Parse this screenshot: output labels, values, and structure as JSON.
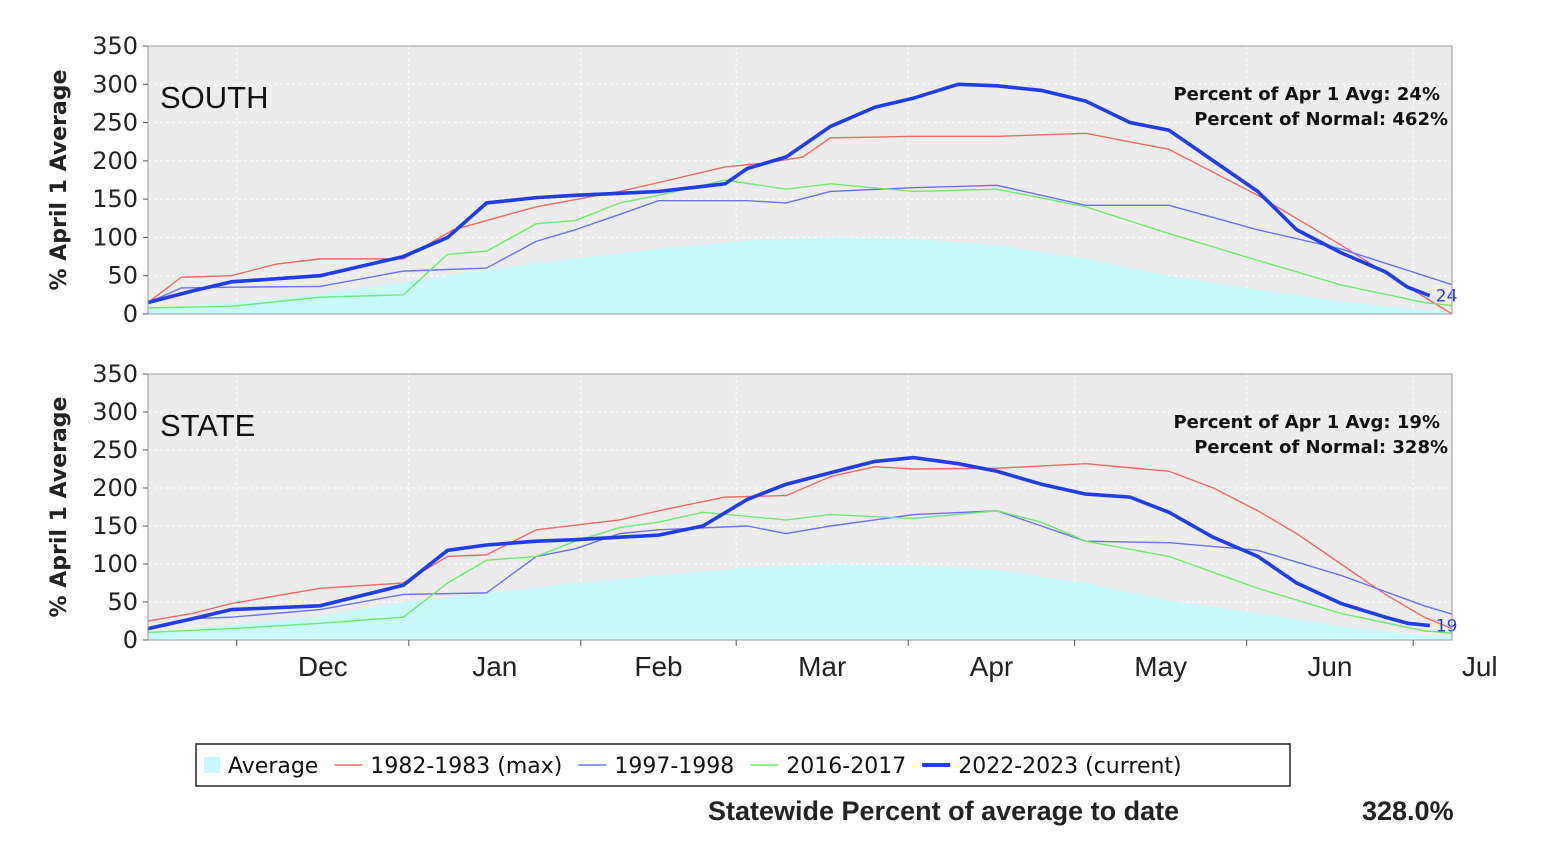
{
  "chart_data": {
    "type": "line",
    "ylabel": "% April 1 Average",
    "yticks": [
      0,
      50,
      100,
      150,
      200,
      250,
      300,
      350
    ],
    "ylim": [
      0,
      350
    ],
    "months": [
      "Dec",
      "Jan",
      "Feb",
      "Mar",
      "Apr",
      "May",
      "Jun",
      "Jul"
    ],
    "x_unit": "days since Nov 15",
    "xlim": [
      0,
      235
    ],
    "grid": true,
    "legend": {
      "placement": "bottom",
      "entries": [
        {
          "key": "average",
          "label": "Average",
          "color": "#c8fafc",
          "kind": "area"
        },
        {
          "key": "y1983",
          "label": "1982-1983 (max)",
          "color": "#f06a6a",
          "kind": "line"
        },
        {
          "key": "y1998",
          "label": "1997-1998",
          "color": "#6a73ee",
          "kind": "line"
        },
        {
          "key": "y2017",
          "label": "2016-2017",
          "color": "#6fe86f",
          "kind": "line"
        },
        {
          "key": "y2023",
          "label": "2022-2023 (current)",
          "color": "#1f3de8",
          "kind": "thick-line"
        }
      ]
    },
    "panels": [
      {
        "title": "SOUTH",
        "stat1_label": "Percent of Apr 1 Avg:",
        "stat1_value": "24%",
        "stat2_label": "Percent of Normal:",
        "stat2_value": "462%",
        "end_label": "24",
        "series": {
          "average": [
            [
              0,
              8
            ],
            [
              15,
              15
            ],
            [
              30,
              25
            ],
            [
              46,
              42
            ],
            [
              61,
              58
            ],
            [
              77,
              73
            ],
            [
              92,
              85
            ],
            [
              108,
              96
            ],
            [
              123,
              100
            ],
            [
              138,
              98
            ],
            [
              153,
              90
            ],
            [
              169,
              72
            ],
            [
              184,
              50
            ],
            [
              200,
              32
            ],
            [
              215,
              16
            ],
            [
              230,
              5
            ],
            [
              245,
              1
            ],
            [
              250,
              0
            ]
          ],
          "y1983": [
            [
              0,
              15
            ],
            [
              6,
              48
            ],
            [
              15,
              50
            ],
            [
              23,
              65
            ],
            [
              31,
              72
            ],
            [
              46,
              72
            ],
            [
              55,
              110
            ],
            [
              70,
              140
            ],
            [
              85,
              160
            ],
            [
              94,
              175
            ],
            [
              104,
              192
            ],
            [
              111,
              197
            ],
            [
              118,
              205
            ],
            [
              123,
              230
            ],
            [
              138,
              232
            ],
            [
              153,
              232
            ],
            [
              169,
              236
            ],
            [
              184,
              215
            ],
            [
              200,
              155
            ],
            [
              215,
              90
            ],
            [
              226,
              40
            ],
            [
              235,
              0
            ]
          ],
          "y1998": [
            [
              0,
              15
            ],
            [
              6,
              34
            ],
            [
              15,
              35
            ],
            [
              31,
              36
            ],
            [
              46,
              56
            ],
            [
              61,
              60
            ],
            [
              70,
              95
            ],
            [
              77,
              110
            ],
            [
              85,
              130
            ],
            [
              92,
              148
            ],
            [
              108,
              148
            ],
            [
              115,
              145
            ],
            [
              123,
              160
            ],
            [
              138,
              165
            ],
            [
              153,
              168
            ],
            [
              161,
              155
            ],
            [
              169,
              142
            ],
            [
              184,
              142
            ],
            [
              200,
              110
            ],
            [
              215,
              85
            ],
            [
              230,
              50
            ],
            [
              245,
              15
            ],
            [
              260,
              0
            ]
          ],
          "y2017": [
            [
              0,
              8
            ],
            [
              15,
              10
            ],
            [
              31,
              22
            ],
            [
              46,
              25
            ],
            [
              54,
              78
            ],
            [
              61,
              82
            ],
            [
              70,
              118
            ],
            [
              77,
              122
            ],
            [
              85,
              145
            ],
            [
              92,
              155
            ],
            [
              104,
              175
            ],
            [
              115,
              163
            ],
            [
              123,
              170
            ],
            [
              138,
              160
            ],
            [
              153,
              163
            ],
            [
              169,
              140
            ],
            [
              184,
              105
            ],
            [
              200,
              70
            ],
            [
              215,
              38
            ],
            [
              230,
              15
            ],
            [
              245,
              3
            ],
            [
              250,
              0
            ]
          ],
          "y2023": [
            [
              0,
              15
            ],
            [
              8,
              30
            ],
            [
              15,
              42
            ],
            [
              31,
              50
            ],
            [
              46,
              75
            ],
            [
              54,
              100
            ],
            [
              61,
              145
            ],
            [
              70,
              152
            ],
            [
              77,
              155
            ],
            [
              92,
              160
            ],
            [
              104,
              170
            ],
            [
              108,
              190
            ],
            [
              115,
              205
            ],
            [
              123,
              245
            ],
            [
              131,
              270
            ],
            [
              138,
              282
            ],
            [
              146,
              300
            ],
            [
              153,
              298
            ],
            [
              161,
              292
            ],
            [
              169,
              278
            ],
            [
              177,
              250
            ],
            [
              184,
              240
            ],
            [
              192,
              200
            ],
            [
              200,
              160
            ],
            [
              207,
              110
            ],
            [
              215,
              80
            ],
            [
              223,
              55
            ],
            [
              227,
              35
            ],
            [
              231,
              24
            ]
          ]
        }
      },
      {
        "title": "STATE",
        "stat1_label": "Percent of Apr 1 Avg:",
        "stat1_value": "19%",
        "stat2_label": "Percent of Normal:",
        "stat2_value": "328%",
        "end_label": "19",
        "series": {
          "average": [
            [
              0,
              10
            ],
            [
              15,
              20
            ],
            [
              30,
              30
            ],
            [
              46,
              50
            ],
            [
              61,
              62
            ],
            [
              77,
              75
            ],
            [
              92,
              85
            ],
            [
              108,
              95
            ],
            [
              123,
              100
            ],
            [
              138,
              98
            ],
            [
              153,
              92
            ],
            [
              169,
              75
            ],
            [
              184,
              52
            ],
            [
              200,
              35
            ],
            [
              215,
              18
            ],
            [
              230,
              6
            ],
            [
              245,
              1
            ],
            [
              250,
              0
            ]
          ],
          "y1983": [
            [
              0,
              25
            ],
            [
              8,
              35
            ],
            [
              15,
              48
            ],
            [
              31,
              68
            ],
            [
              46,
              75
            ],
            [
              54,
              110
            ],
            [
              61,
              112
            ],
            [
              70,
              145
            ],
            [
              85,
              158
            ],
            [
              92,
              170
            ],
            [
              104,
              188
            ],
            [
              115,
              190
            ],
            [
              123,
              215
            ],
            [
              131,
              228
            ],
            [
              138,
              225
            ],
            [
              153,
              226
            ],
            [
              169,
              232
            ],
            [
              184,
              222
            ],
            [
              192,
              200
            ],
            [
              200,
              170
            ],
            [
              207,
              140
            ],
            [
              215,
              100
            ],
            [
              223,
              60
            ],
            [
              230,
              30
            ],
            [
              240,
              0
            ]
          ],
          "y1998": [
            [
              0,
              15
            ],
            [
              8,
              28
            ],
            [
              15,
              30
            ],
            [
              31,
              40
            ],
            [
              46,
              60
            ],
            [
              61,
              62
            ],
            [
              70,
              110
            ],
            [
              77,
              120
            ],
            [
              85,
              140
            ],
            [
              92,
              145
            ],
            [
              108,
              150
            ],
            [
              115,
              140
            ],
            [
              123,
              150
            ],
            [
              138,
              165
            ],
            [
              153,
              170
            ],
            [
              161,
              150
            ],
            [
              169,
              130
            ],
            [
              184,
              128
            ],
            [
              200,
              118
            ],
            [
              215,
              85
            ],
            [
              230,
              45
            ],
            [
              245,
              12
            ],
            [
              255,
              0
            ]
          ],
          "y2017": [
            [
              0,
              10
            ],
            [
              15,
              15
            ],
            [
              31,
              22
            ],
            [
              46,
              30
            ],
            [
              54,
              75
            ],
            [
              61,
              105
            ],
            [
              70,
              110
            ],
            [
              77,
              130
            ],
            [
              85,
              148
            ],
            [
              92,
              155
            ],
            [
              100,
              168
            ],
            [
              115,
              158
            ],
            [
              123,
              165
            ],
            [
              138,
              160
            ],
            [
              153,
              170
            ],
            [
              161,
              155
            ],
            [
              169,
              130
            ],
            [
              184,
              110
            ],
            [
              200,
              68
            ],
            [
              215,
              35
            ],
            [
              230,
              12
            ],
            [
              245,
              3
            ],
            [
              250,
              0
            ]
          ],
          "y2023": [
            [
              0,
              15
            ],
            [
              8,
              28
            ],
            [
              15,
              40
            ],
            [
              31,
              45
            ],
            [
              46,
              72
            ],
            [
              54,
              118
            ],
            [
              61,
              125
            ],
            [
              70,
              130
            ],
            [
              77,
              132
            ],
            [
              92,
              138
            ],
            [
              100,
              150
            ],
            [
              108,
              185
            ],
            [
              115,
              205
            ],
            [
              123,
              220
            ],
            [
              131,
              235
            ],
            [
              138,
              240
            ],
            [
              146,
              232
            ],
            [
              153,
              222
            ],
            [
              161,
              205
            ],
            [
              169,
              192
            ],
            [
              177,
              188
            ],
            [
              184,
              168
            ],
            [
              192,
              135
            ],
            [
              200,
              110
            ],
            [
              207,
              75
            ],
            [
              215,
              48
            ],
            [
              223,
              30
            ],
            [
              227,
              22
            ],
            [
              231,
              19
            ]
          ]
        }
      }
    ]
  },
  "footer": {
    "label": "Statewide Percent of average to date",
    "value": "328.0%"
  }
}
